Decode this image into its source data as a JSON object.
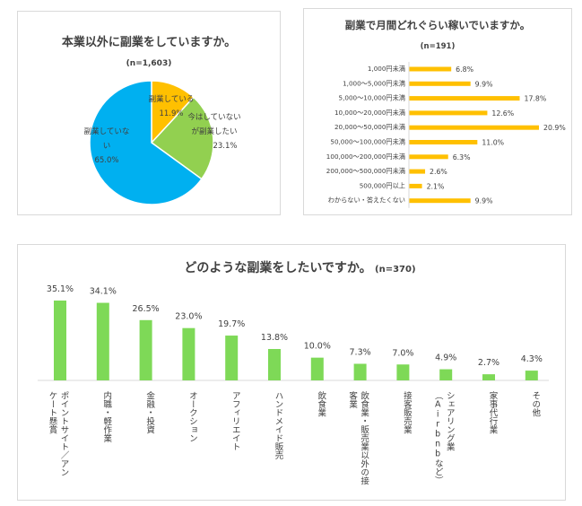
{
  "chart_data": [
    {
      "type": "pie",
      "title": "本業以外に副業をしていますか。",
      "subtitle": "(n=1,603)",
      "slices": [
        {
          "label_lines": [
            "副業している"
          ],
          "value": 11.9,
          "value_label": "11.9%",
          "color": "#FFC000"
        },
        {
          "label_lines": [
            "今はしていない",
            "が副業したい"
          ],
          "value": 23.1,
          "value_label": "23.1%",
          "color": "#92D050"
        },
        {
          "label_lines": [
            "副業していな",
            "い"
          ],
          "value": 65.0,
          "value_label": "65.0%",
          "color": "#00B0F0"
        }
      ]
    },
    {
      "type": "bar",
      "orientation": "horizontal",
      "title": "副業で月間どれぐらい稼いでいますか。",
      "subtitle": "(n=191)",
      "color": "#FFC000",
      "categories": [
        "1,000円未満",
        "1,000～5,000円未満",
        "5,000～10,000円未満",
        "10,000～20,000円未満",
        "20,000～50,000円未満",
        "50,000～100,000円未満",
        "100,000～200,000円未満",
        "200,000～500,000円未満",
        "500,000円以上",
        "わからない・答えたくない"
      ],
      "values": [
        6.8,
        9.9,
        17.8,
        12.6,
        20.9,
        11.0,
        6.3,
        2.6,
        2.1,
        9.9
      ],
      "value_labels": [
        "6.8%",
        "9.9%",
        "17.8%",
        "12.6%",
        "20.9%",
        "11.0%",
        "6.3%",
        "2.6%",
        "2.1%",
        "9.9%"
      ]
    },
    {
      "type": "bar",
      "orientation": "vertical",
      "title": "どのような副業をしたいですか。",
      "subtitle": "(n=370)",
      "color": "#7ED957",
      "categories": [
        [
          "ポイントサイト／アン",
          "ケート懸賞"
        ],
        [
          "内職・軽作業"
        ],
        [
          "金融・投資"
        ],
        [
          "オークション"
        ],
        [
          "アフィリエイト"
        ],
        [
          "ハンドメイド販売"
        ],
        [
          "飲食業"
        ],
        [
          "飲食業・販売業以外の接",
          "客業"
        ],
        [
          "接客販売業"
        ],
        [
          "シェアリング業",
          "（Airbnbなど）"
        ],
        [
          "家事代行業"
        ],
        [
          "その他"
        ]
      ],
      "values": [
        35.1,
        34.1,
        26.5,
        23.0,
        19.7,
        13.8,
        10.0,
        7.3,
        7.0,
        4.9,
        2.7,
        4.3
      ],
      "value_labels": [
        "35.1%",
        "34.1%",
        "26.5%",
        "23.0%",
        "19.7%",
        "13.8%",
        "10.0%",
        "7.3%",
        "7.0%",
        "4.9%",
        "2.7%",
        "4.3%"
      ]
    }
  ]
}
